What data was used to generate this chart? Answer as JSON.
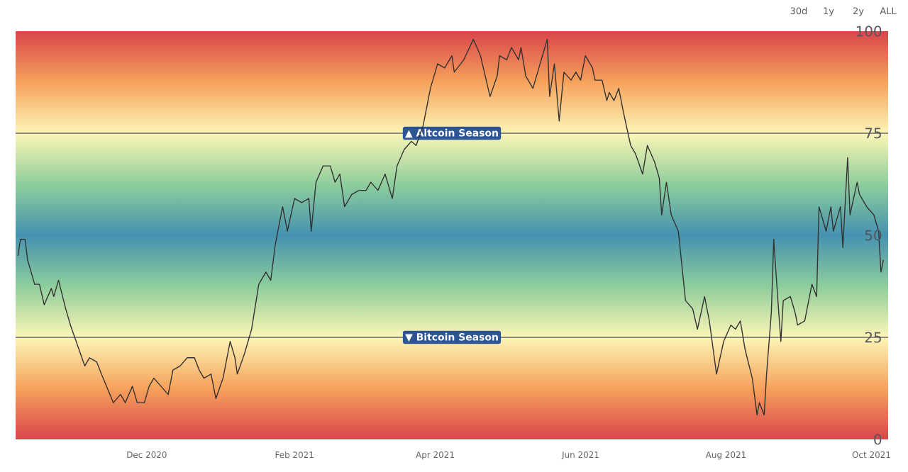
{
  "chart_data": {
    "type": "line",
    "x": [
      "2020-10-08",
      "2020-10-09",
      "2020-10-11",
      "2020-10-12",
      "2020-10-15",
      "2020-10-17",
      "2020-10-19",
      "2020-10-22",
      "2020-10-23",
      "2020-10-25",
      "2020-10-28",
      "2020-10-30",
      "2020-11-02",
      "2020-11-05",
      "2020-11-07",
      "2020-11-10",
      "2020-11-12",
      "2020-11-17",
      "2020-11-20",
      "2020-11-22",
      "2020-11-25",
      "2020-11-27",
      "2020-11-30",
      "2020-12-02",
      "2020-12-04",
      "2020-12-07",
      "2020-12-10",
      "2020-12-12",
      "2020-12-15",
      "2020-12-18",
      "2020-12-21",
      "2020-12-23",
      "2020-12-25",
      "2020-12-28",
      "2020-12-30",
      "2021-01-02",
      "2021-01-05",
      "2021-01-07",
      "2021-01-08",
      "2021-01-11",
      "2021-01-14",
      "2021-01-17",
      "2021-01-20",
      "2021-01-22",
      "2021-01-24",
      "2021-01-27",
      "2021-01-29",
      "2021-02-01",
      "2021-02-04",
      "2021-02-07",
      "2021-02-08",
      "2021-02-10",
      "2021-02-13",
      "2021-02-16",
      "2021-02-18",
      "2021-02-20",
      "2021-02-22",
      "2021-02-25",
      "2021-02-28",
      "2021-03-03",
      "2021-03-05",
      "2021-03-08",
      "2021-03-11",
      "2021-03-14",
      "2021-03-16",
      "2021-03-19",
      "2021-03-22",
      "2021-03-24",
      "2021-03-27",
      "2021-03-30",
      "2021-04-02",
      "2021-04-05",
      "2021-04-08",
      "2021-04-09",
      "2021-04-13",
      "2021-04-17",
      "2021-04-20",
      "2021-04-24",
      "2021-04-27",
      "2021-04-28",
      "2021-05-01",
      "2021-05-03",
      "2021-05-06",
      "2021-05-07",
      "2021-05-09",
      "2021-05-12",
      "2021-05-15",
      "2021-05-18",
      "2021-05-19",
      "2021-05-21",
      "2021-05-23",
      "2021-05-25",
      "2021-05-28",
      "2021-05-30",
      "2021-06-01",
      "2021-06-03",
      "2021-06-06",
      "2021-06-07",
      "2021-06-10",
      "2021-06-12",
      "2021-06-13",
      "2021-06-15",
      "2021-06-17",
      "2021-06-19",
      "2021-06-22",
      "2021-06-24",
      "2021-06-27",
      "2021-06-29",
      "2021-07-02",
      "2021-07-04",
      "2021-07-05",
      "2021-07-07",
      "2021-07-09",
      "2021-07-12",
      "2021-07-15",
      "2021-07-18",
      "2021-07-20",
      "2021-07-23",
      "2021-07-25",
      "2021-07-28",
      "2021-07-31",
      "2021-08-03",
      "2021-08-05",
      "2021-08-07",
      "2021-08-09",
      "2021-08-12",
      "2021-08-14",
      "2021-08-15",
      "2021-08-17",
      "2021-08-18",
      "2021-08-20",
      "2021-08-21",
      "2021-08-23",
      "2021-08-24",
      "2021-08-25",
      "2021-08-28",
      "2021-08-30",
      "2021-08-31",
      "2021-09-03",
      "2021-09-06",
      "2021-09-08",
      "2021-09-09",
      "2021-09-12",
      "2021-09-14",
      "2021-09-15",
      "2021-09-18",
      "2021-09-19",
      "2021-09-21",
      "2021-09-22",
      "2021-09-25",
      "2021-09-26",
      "2021-09-29",
      "2021-10-02",
      "2021-10-04",
      "2021-10-05",
      "2021-10-06"
    ],
    "series": [
      {
        "color": "#333333",
        "values": [
          45,
          49,
          49,
          44,
          38,
          38,
          33,
          37,
          35,
          39,
          32,
          28,
          23,
          18,
          20,
          19,
          16,
          9,
          11,
          9,
          13,
          9,
          9,
          13,
          15,
          13,
          11,
          17,
          18,
          20,
          20,
          17,
          15,
          16,
          10,
          15,
          24,
          20,
          16,
          21,
          27,
          38,
          41,
          39,
          48,
          57,
          51,
          59,
          58,
          59,
          51,
          63,
          67,
          67,
          63,
          65,
          57,
          60,
          61,
          61,
          63,
          61,
          65,
          59,
          67,
          71,
          73,
          72,
          77,
          86,
          92,
          91,
          94,
          90,
          93,
          98,
          94,
          84,
          89,
          94,
          93,
          96,
          93,
          96,
          89,
          86,
          92,
          98,
          84,
          92,
          78,
          90,
          88,
          90,
          88,
          94,
          91,
          88,
          88,
          83,
          85,
          83,
          86,
          80,
          72,
          70,
          65,
          72,
          68,
          64,
          55,
          63,
          55,
          51,
          34,
          32,
          27,
          35,
          29,
          16,
          24,
          28,
          27,
          29,
          22,
          15,
          6,
          9,
          6,
          16,
          31,
          49,
          32,
          24,
          34,
          35,
          31,
          28,
          29,
          38,
          35,
          57,
          51,
          57,
          51,
          57,
          47,
          69,
          55,
          63,
          60,
          57,
          55,
          51,
          41,
          44
        ]
      }
    ],
    "xlim": [
      "2020-10-07",
      "2021-10-08"
    ],
    "xticks": [
      {
        "value": "2020-12-01",
        "label": "Dec 2020"
      },
      {
        "value": "2021-02-01",
        "label": "Feb 2021"
      },
      {
        "value": "2021-04-01",
        "label": "Apr 2021"
      },
      {
        "value": "2021-06-01",
        "label": "Jun 2021"
      },
      {
        "value": "2021-08-01",
        "label": "Aug 2021"
      },
      {
        "value": "2021-10-01",
        "label": "Oct 2021"
      }
    ],
    "ylim": [
      0,
      100
    ],
    "yticks": [
      0,
      25,
      50,
      75,
      100
    ],
    "ref_lines": [
      {
        "axis": "y",
        "value": 75,
        "label": "▲ Altcoin Season",
        "color": "#666666"
      },
      {
        "axis": "y",
        "value": 25,
        "label": "▼ Bitcoin Season",
        "color": "#666666"
      }
    ],
    "annotations": [
      "30d",
      "1y",
      "2y",
      "ALL"
    ]
  }
}
